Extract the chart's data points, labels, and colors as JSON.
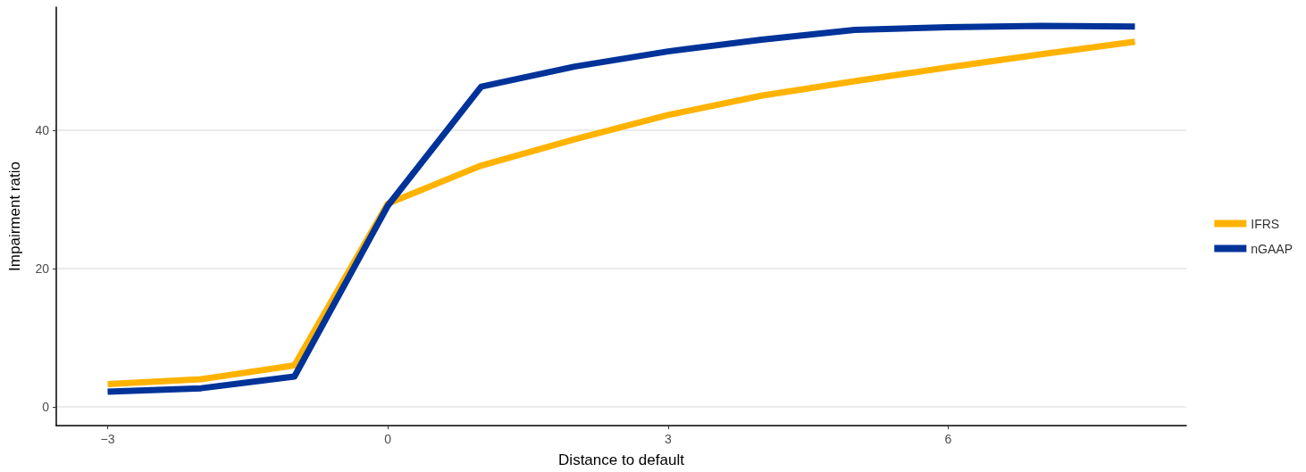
{
  "chart_data": {
    "type": "line",
    "xlabel": "Distance to default",
    "ylabel": "Impairment ratio",
    "x": [
      -3,
      -2,
      -1,
      0,
      1,
      2,
      3,
      4,
      5,
      6,
      7,
      8
    ],
    "series": [
      {
        "name": "IFRS",
        "color": "#ffb300",
        "values": [
          3.3,
          4.0,
          6.0,
          29.4,
          34.9,
          38.7,
          42.2,
          45.0,
          47.1,
          49.1,
          51.0,
          52.8
        ]
      },
      {
        "name": "nGAAP",
        "color": "#003399",
        "values": [
          2.2,
          2.7,
          4.4,
          29.1,
          46.3,
          49.2,
          51.4,
          53.1,
          54.5,
          54.9,
          55.1,
          55.0
        ]
      }
    ],
    "xlim": [
      -3.55,
      8.55
    ],
    "xticks": [
      {
        "value": -3,
        "label": "−3"
      },
      0,
      3,
      6
    ],
    "ylim": [
      -2.7,
      57.8
    ],
    "yticks": [
      0,
      20,
      40
    ],
    "grid": "y",
    "legend": "right",
    "marker": "none",
    "line_style": "solid"
  }
}
